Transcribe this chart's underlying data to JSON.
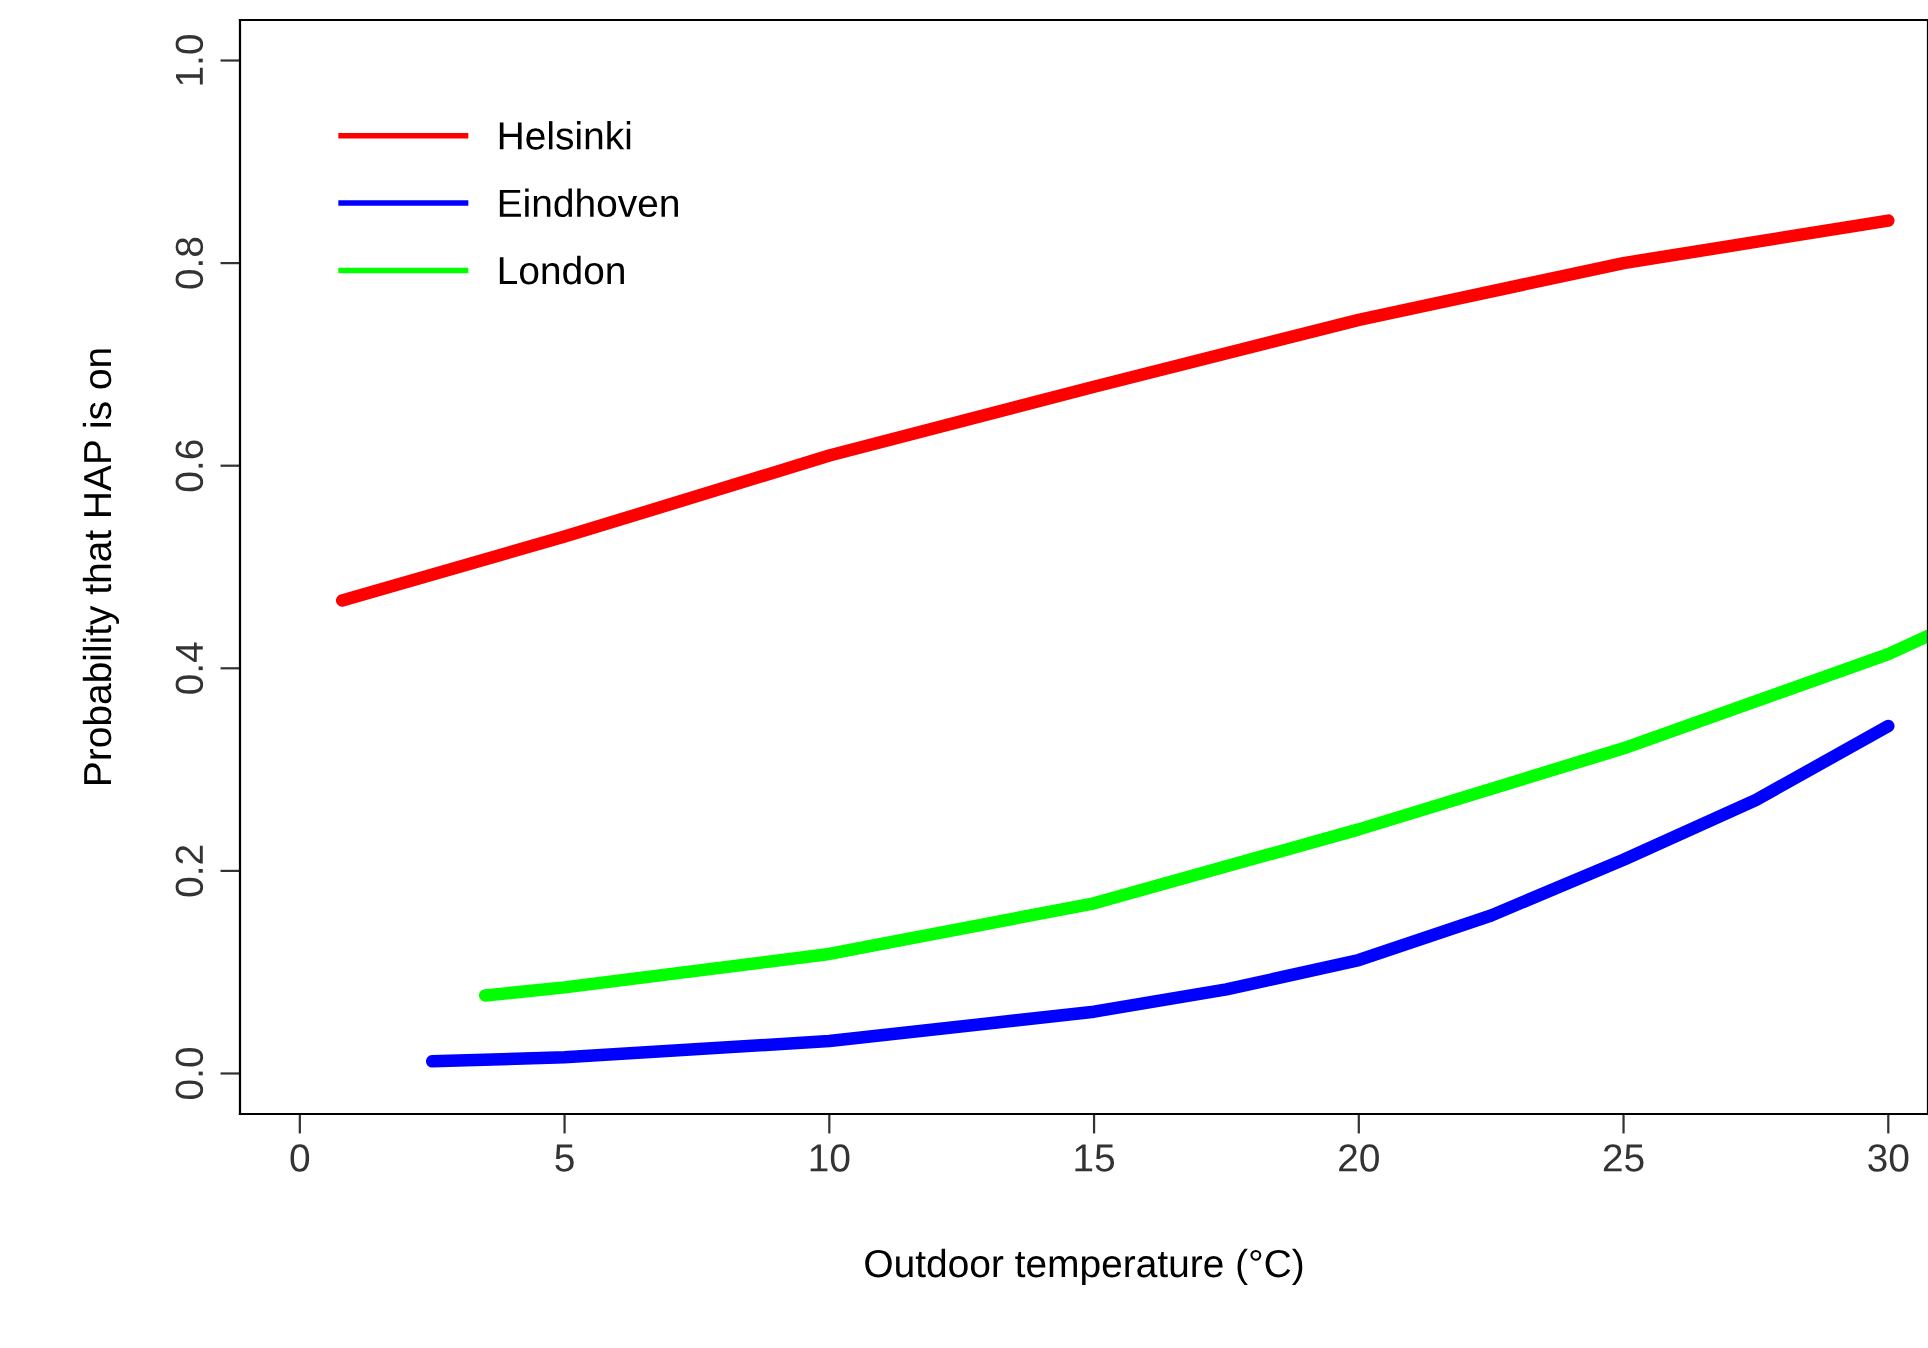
{
  "chart_data": {
    "type": "line",
    "xlabel": "Outdoor temperature (°C)",
    "ylabel": "Probability that HAP is on",
    "xlim": [
      -1.13,
      30.75
    ],
    "ylim": [
      -0.04,
      1.04
    ],
    "xticks": [
      0,
      5,
      10,
      15,
      20,
      25,
      30
    ],
    "yticks": [
      {
        "value": 0,
        "label": "0.0"
      },
      0.2,
      0.4,
      0.6,
      0.8,
      {
        "value": 1,
        "label": "1.0"
      }
    ],
    "grid": false,
    "legend": "top left",
    "marker": "none",
    "line_style": "solid",
    "series": [
      {
        "name": "Helsinki",
        "color": "#ff0000",
        "x": [
          0.8,
          5,
          10,
          15,
          20,
          25,
          30
        ],
        "values": [
          0.467,
          0.53,
          0.61,
          0.678,
          0.744,
          0.8,
          0.842
        ]
      },
      {
        "name": "Eindhoven",
        "color": "#0000ff",
        "x": [
          2.5,
          5,
          10,
          15,
          17.5,
          20,
          22.5,
          25,
          27.5,
          30
        ],
        "values": [
          0.012,
          0.016,
          0.032,
          0.061,
          0.083,
          0.112,
          0.156,
          0.211,
          0.27,
          0.343
        ]
      },
      {
        "name": "London",
        "color": "#00ff00",
        "x": [
          3.5,
          5,
          10,
          15,
          20,
          25,
          30,
          30.75
        ],
        "values": [
          0.077,
          0.085,
          0.118,
          0.168,
          0.241,
          0.321,
          0.414,
          0.432
        ]
      }
    ]
  }
}
